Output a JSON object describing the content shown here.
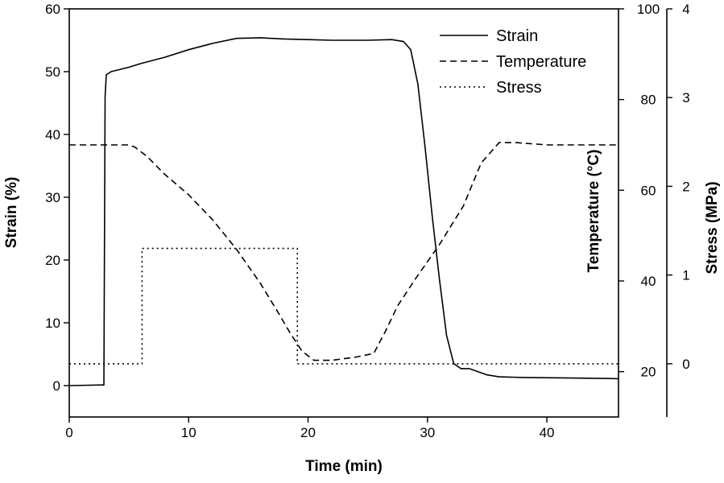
{
  "chart_data": {
    "type": "line",
    "title": "",
    "xlabel": "Time (min)",
    "ylabel_left": "Strain (%)",
    "ylabel_right_1": "Temperature (°C)",
    "ylabel_right_2": "Stress (MPa)",
    "xlim": [
      0,
      46
    ],
    "ylim_left": [
      -5,
      60
    ],
    "ylim_temp": [
      10,
      100
    ],
    "ylim_stress": [
      -0.6,
      4
    ],
    "x_ticks": [
      "0",
      "10",
      "20",
      "30",
      "40"
    ],
    "y_left_ticks": [
      "0",
      "10",
      "20",
      "30",
      "40",
      "50",
      "60"
    ],
    "y_temp_ticks": [
      "20",
      "40",
      "60",
      "80",
      "100"
    ],
    "y_stress_ticks": [
      "0",
      "1",
      "2",
      "3",
      "4"
    ],
    "legend_position": "top-right",
    "grid": false,
    "series": [
      {
        "name": "Strain",
        "axis": "left",
        "dash": "solid",
        "points": [
          [
            0,
            0
          ],
          [
            2.9,
            0.1
          ],
          [
            3.0,
            46
          ],
          [
            3.1,
            49.5
          ],
          [
            3.5,
            50
          ],
          [
            5,
            50.7
          ],
          [
            6,
            51.3
          ],
          [
            8,
            52.3
          ],
          [
            10,
            53.5
          ],
          [
            12,
            54.5
          ],
          [
            14,
            55.3
          ],
          [
            16,
            55.4
          ],
          [
            18,
            55.2
          ],
          [
            20,
            55.1
          ],
          [
            22,
            55.0
          ],
          [
            25,
            55.0
          ],
          [
            27,
            55.1
          ],
          [
            28,
            54.8
          ],
          [
            28.6,
            53.5
          ],
          [
            29.2,
            48
          ],
          [
            29.8,
            38
          ],
          [
            30.4,
            27
          ],
          [
            31,
            17
          ],
          [
            31.6,
            8
          ],
          [
            32.2,
            3.5
          ],
          [
            32.8,
            2.7
          ],
          [
            33.5,
            2.7
          ],
          [
            35,
            1.7
          ],
          [
            36,
            1.4
          ],
          [
            38,
            1.3
          ],
          [
            42,
            1.2
          ],
          [
            46,
            1.1
          ]
        ]
      },
      {
        "name": "Temperature",
        "axis": "temp",
        "dash": "dashed",
        "points": [
          [
            0,
            70
          ],
          [
            5,
            70
          ],
          [
            5.5,
            69.5
          ],
          [
            6.5,
            67.5
          ],
          [
            8,
            63.5
          ],
          [
            10,
            59
          ],
          [
            12,
            53.5
          ],
          [
            14,
            47
          ],
          [
            16,
            39.5
          ],
          [
            17.5,
            33
          ],
          [
            18.5,
            28.5
          ],
          [
            19.5,
            24.5
          ],
          [
            20.5,
            22.5
          ],
          [
            22,
            22.5
          ],
          [
            24,
            23.2
          ],
          [
            25.5,
            24
          ],
          [
            26.5,
            29
          ],
          [
            27.5,
            34.5
          ],
          [
            29,
            40.5
          ],
          [
            31,
            48
          ],
          [
            33,
            56.5
          ],
          [
            34.5,
            66
          ],
          [
            36,
            70.5
          ],
          [
            37.5,
            70.5
          ],
          [
            40,
            70
          ],
          [
            46,
            70
          ]
        ]
      },
      {
        "name": "Stress",
        "axis": "stress",
        "dash": "dotted",
        "points": [
          [
            0,
            0
          ],
          [
            6.1,
            0
          ],
          [
            6.1,
            1.3
          ],
          [
            19.1,
            1.3
          ],
          [
            19.1,
            0
          ],
          [
            46,
            0
          ]
        ]
      }
    ]
  }
}
